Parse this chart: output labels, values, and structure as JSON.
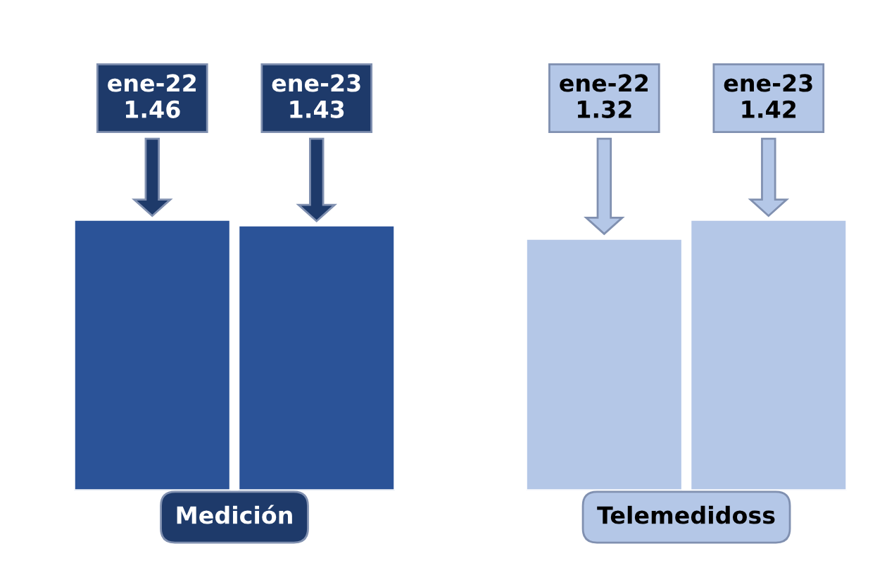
{
  "chart_data": [
    {
      "type": "bar",
      "categories": [
        "ene-22",
        "ene-23"
      ],
      "values": [
        1.46,
        1.43
      ],
      "color": "#2b5398",
      "xlabel": "Medición",
      "data_labels": true
    },
    {
      "type": "bar",
      "categories": [
        "ene-22",
        "ene-23"
      ],
      "values": [
        1.32,
        1.42
      ],
      "color": "#b4c7e7",
      "xlabel": "Telemedidoss",
      "data_labels": true
    }
  ]
}
